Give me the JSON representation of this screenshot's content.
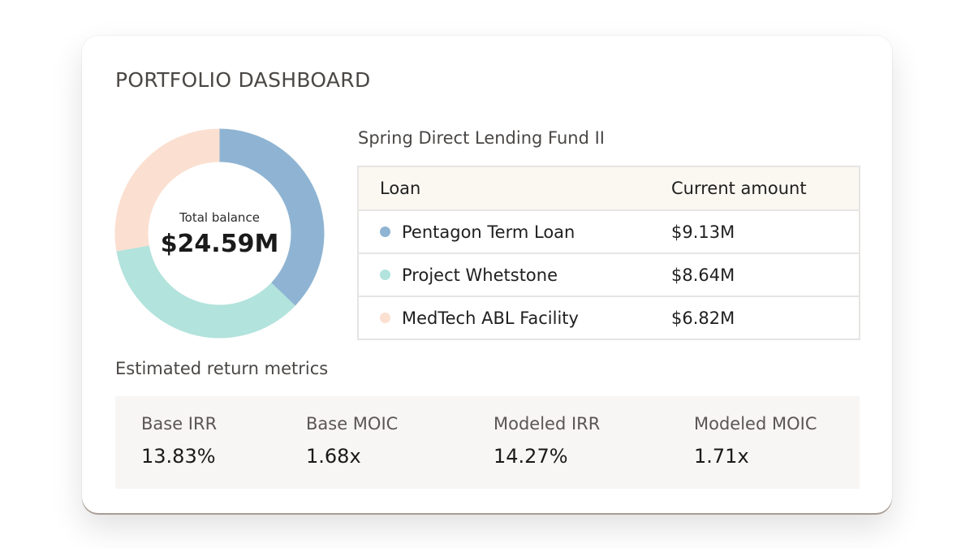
{
  "dashboard": {
    "title": "PORTFOLIO DASHBOARD"
  },
  "balance": {
    "label": "Total balance",
    "value": "$24.59M"
  },
  "fund": {
    "name": "Spring Direct Lending Fund II",
    "columns": {
      "loan": "Loan",
      "amount": "Current amount"
    },
    "loans": [
      {
        "name": "Pentagon Term Loan",
        "amount": "$9.13M",
        "value_m": 9.13,
        "color": "#8fb4d3"
      },
      {
        "name": "Project Whetstone",
        "amount": "$8.64M",
        "value_m": 8.64,
        "color": "#b2e3dc"
      },
      {
        "name": "MedTech ABL Facility",
        "amount": "$6.82M",
        "value_m": 6.82,
        "color": "#fbdfd0"
      }
    ]
  },
  "metrics": {
    "title": "Estimated return metrics",
    "items": [
      {
        "label": "Base IRR",
        "value": "13.83%"
      },
      {
        "label": "Base MOIC",
        "value": "1.68x"
      },
      {
        "label": "Modeled IRR",
        "value": "14.27%"
      },
      {
        "label": "Modeled MOIC",
        "value": "1.71x"
      }
    ]
  },
  "chart_data": {
    "type": "pie",
    "categories": [
      "Pentagon Term Loan",
      "Project Whetstone",
      "MedTech ABL Facility"
    ],
    "values": [
      9.13,
      8.64,
      6.82
    ],
    "colors": [
      "#8fb4d3",
      "#b2e3dc",
      "#fbdfd0"
    ],
    "donut": true
  }
}
